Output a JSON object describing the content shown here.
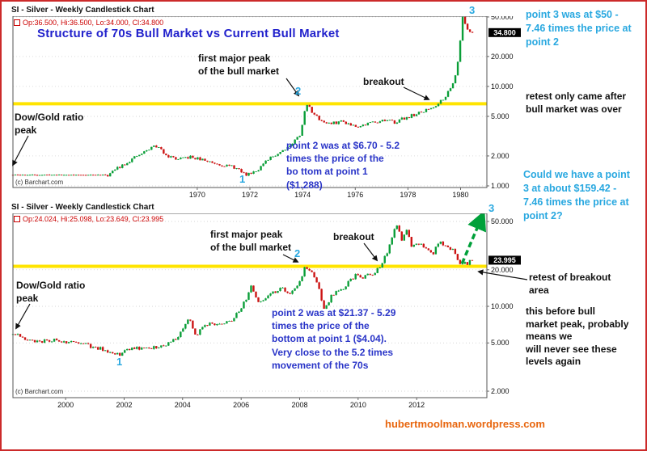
{
  "top_chart": {
    "titlebar": "SI - Silver - Weekly Candlestick Chart",
    "quote": "Op:36.500, Hi:36.500, Lo:34.000, Cl:34.800",
    "main_title": "Structure of 70s Bull Market vs Current Bull Market",
    "copyright": "(c) Barchart.com",
    "labels": {
      "point1": "1",
      "point2": "2",
      "point3": "3"
    },
    "annotations": {
      "first_peak": "first major peak\nof the bull market",
      "breakout": "breakout",
      "dow_gold": "Dow/Gold ratio\npeak",
      "point2_note": "point 2 was at $6.70 - 5.2\ntimes the price of the\nbo ttom at point 1\n($1.288)"
    }
  },
  "bottom_chart": {
    "titlebar": "SI - Silver - Weekly Candlestick Chart",
    "quote": "Op:24.024, Hi:25.098, Lo:23.649, Cl:23.995",
    "copyright": "(c) Barchart.com",
    "labels": {
      "point1": "1",
      "point2": "2",
      "point3": "3"
    },
    "annotations": {
      "first_peak": "first major peak\nof the bull market",
      "breakout": "breakout",
      "dow_gold": "Dow/Gold ratio\npeak",
      "point2_note": "point 2 was at $21.37 - 5.29\ntimes the price of the\nbottom at point 1 ($4.04).\nVery close to the 5.2 times\nmovement of the 70s"
    }
  },
  "side_notes": {
    "point3_top": "point 3 was at $50 -\n7.46 times the price at\npoint 2",
    "retest_after": "retest only came after\nbull market was over",
    "could_we": "Could we have a point\n3 at about $159.42 -\n7.46 times the price at\npoint 2?",
    "retest_breakout": "retest of breakout\narea",
    "before_peak": "this before bull\nmarket peak, probably\nmeans we\nwill never see these\nlevels again"
  },
  "footer": {
    "url": "hubertmoolman.wordpress.com"
  },
  "colors": {
    "cyan": "#29a8e0",
    "blue_note": "#2a35c8",
    "title_blue": "#2222cc",
    "orange": "#e8650d",
    "candle_up": "#0a9e38",
    "candle_down": "#cc1414",
    "yellow_line": "#ffe400"
  },
  "chart_data": [
    {
      "type": "candlestick",
      "title": "SI - Silver - Weekly Candlestick Chart (1970s bull market)",
      "x_range": [
        1963,
        1981
      ],
      "x_ticks": [
        1970,
        1972,
        1974,
        1976,
        1978,
        1980
      ],
      "y_scale": "log",
      "y_range": [
        0.963,
        50.9
      ],
      "y_ticks": [
        1,
        2,
        5,
        10,
        20,
        50
      ],
      "y_tick_labels": [
        "1.000",
        "2.000",
        "5.000",
        "10.000",
        "20.000",
        "50.000"
      ],
      "last_price": 34.8,
      "last_price_label": "34.800",
      "yellow_line": 6.7,
      "keypoints": [
        [
          1963.0,
          1.29
        ],
        [
          1966.6,
          1.29
        ],
        [
          1967.1,
          1.6
        ],
        [
          1967.6,
          1.9
        ],
        [
          1968.0,
          2.2
        ],
        [
          1968.4,
          2.56
        ],
        [
          1968.9,
          2.0
        ],
        [
          1969.3,
          1.83
        ],
        [
          1969.7,
          1.95
        ],
        [
          1970.1,
          1.85
        ],
        [
          1970.6,
          1.72
        ],
        [
          1971.0,
          1.62
        ],
        [
          1971.4,
          1.54
        ],
        [
          1971.85,
          1.29
        ],
        [
          1972.3,
          1.47
        ],
        [
          1972.8,
          1.92
        ],
        [
          1973.2,
          2.25
        ],
        [
          1973.6,
          2.65
        ],
        [
          1973.9,
          3.3
        ],
        [
          1974.15,
          6.7
        ],
        [
          1974.5,
          5.0
        ],
        [
          1974.8,
          4.4
        ],
        [
          1975.1,
          4.2
        ],
        [
          1975.5,
          4.5
        ],
        [
          1975.9,
          4.1
        ],
        [
          1976.2,
          4.0
        ],
        [
          1976.6,
          4.35
        ],
        [
          1977.0,
          4.55
        ],
        [
          1977.5,
          4.4
        ],
        [
          1978.0,
          4.95
        ],
        [
          1978.5,
          5.45
        ],
        [
          1979.0,
          6.3
        ],
        [
          1979.3,
          7.4
        ],
        [
          1979.6,
          9.2
        ],
        [
          1979.8,
          13.0
        ],
        [
          1979.95,
          22.0
        ],
        [
          1980.08,
          50.0
        ],
        [
          1980.25,
          38.0
        ],
        [
          1980.45,
          34.8
        ]
      ],
      "marked_points": {
        "1": [
          1971.85,
          1.29
        ],
        "2": [
          1974.15,
          6.7
        ],
        "3": [
          1980.08,
          50.0
        ]
      }
    },
    {
      "type": "candlestick",
      "title": "SI - Silver - Weekly Candlestick Chart (current bull market)",
      "x_range": [
        1998.2,
        2014.4
      ],
      "x_ticks": [
        2000,
        2002,
        2004,
        2006,
        2008,
        2010,
        2012
      ],
      "y_scale": "log",
      "y_range": [
        1.77,
        58.3
      ],
      "y_ticks": [
        2,
        5,
        10,
        20,
        50
      ],
      "y_tick_labels": [
        "2.000",
        "5.000",
        "10.000",
        "20.000",
        "50.000"
      ],
      "last_price": 23.995,
      "last_price_label": "23.995",
      "yellow_line": 21.37,
      "keypoints": [
        [
          1998.2,
          6.1
        ],
        [
          1998.6,
          5.2
        ],
        [
          1999.1,
          5.1
        ],
        [
          1999.6,
          5.3
        ],
        [
          2000.0,
          5.1
        ],
        [
          2000.5,
          4.95
        ],
        [
          2001.0,
          4.55
        ],
        [
          2001.5,
          4.3
        ],
        [
          2001.85,
          4.04
        ],
        [
          2002.3,
          4.6
        ],
        [
          2002.8,
          4.45
        ],
        [
          2003.3,
          4.75
        ],
        [
          2003.8,
          5.4
        ],
        [
          2004.2,
          8.0
        ],
        [
          2004.45,
          5.8
        ],
        [
          2004.9,
          7.3
        ],
        [
          2005.3,
          7.0
        ],
        [
          2005.7,
          7.7
        ],
        [
          2006.0,
          9.5
        ],
        [
          2006.35,
          14.5
        ],
        [
          2006.6,
          10.5
        ],
        [
          2007.0,
          13.0
        ],
        [
          2007.4,
          13.8
        ],
        [
          2007.7,
          12.7
        ],
        [
          2008.0,
          16.0
        ],
        [
          2008.2,
          21.37
        ],
        [
          2008.55,
          17.0
        ],
        [
          2008.85,
          9.3
        ],
        [
          2009.1,
          12.2
        ],
        [
          2009.5,
          14.2
        ],
        [
          2009.95,
          18.5
        ],
        [
          2010.15,
          17.2
        ],
        [
          2010.5,
          18.5
        ],
        [
          2010.75,
          21.5
        ],
        [
          2011.0,
          28.5
        ],
        [
          2011.2,
          40.0
        ],
        [
          2011.33,
          48.5
        ],
        [
          2011.5,
          34.5
        ],
        [
          2011.65,
          41.5
        ],
        [
          2011.85,
          31.0
        ],
        [
          2012.05,
          33.5
        ],
        [
          2012.3,
          31.0
        ],
        [
          2012.55,
          27.2
        ],
        [
          2012.8,
          34.5
        ],
        [
          2013.0,
          31.0
        ],
        [
          2013.3,
          28.5
        ],
        [
          2013.45,
          23.3
        ],
        [
          2013.7,
          22.2
        ],
        [
          2013.9,
          23.995
        ]
      ],
      "marked_points": {
        "1": [
          2001.85,
          4.04
        ],
        "2": [
          2008.2,
          21.37
        ],
        "3": [
          2014.25,
          56.0
        ]
      },
      "projection": {
        "from": [
          2013.55,
          22.5
        ],
        "to": [
          2014.25,
          56.0
        ]
      }
    }
  ]
}
